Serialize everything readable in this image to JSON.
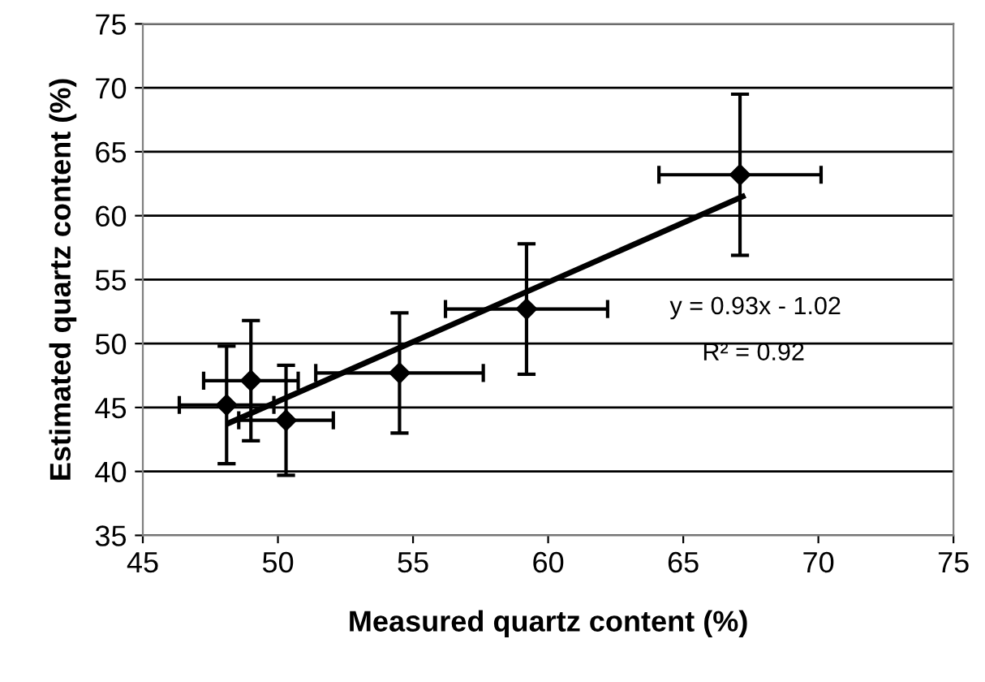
{
  "chart_data": {
    "type": "scatter",
    "xlabel": "Measured quartz content (%)",
    "ylabel": "Estimated quartz content (%)",
    "xlim": [
      45,
      75
    ],
    "xticks": [
      45,
      50,
      55,
      60,
      65,
      70,
      75
    ],
    "ylim": [
      35,
      75
    ],
    "yticks": [
      35,
      40,
      45,
      50,
      55,
      60,
      65,
      70,
      75
    ],
    "grid": "y",
    "series": [
      {
        "marker": "diamond",
        "color": "#000000",
        "x": [
          48.1,
          49.0,
          50.3,
          54.5,
          59.2,
          67.1
        ],
        "values": [
          45.2,
          47.1,
          44.0,
          47.7,
          52.7,
          63.2
        ],
        "errors": [
          4.6,
          4.7,
          4.3,
          4.7,
          5.1,
          6.3
        ],
        "xerrors": [
          1.75,
          1.75,
          1.75,
          3.1,
          3.0,
          3.0
        ]
      },
      {
        "type": "line",
        "color": "#000000",
        "x": [
          48.2,
          67.2
        ],
        "values": [
          43.8,
          61.5
        ],
        "line_style": "solid"
      }
    ],
    "annotations": [
      "y = 0.93x - 1.02",
      "R² = 0.92"
    ]
  }
}
